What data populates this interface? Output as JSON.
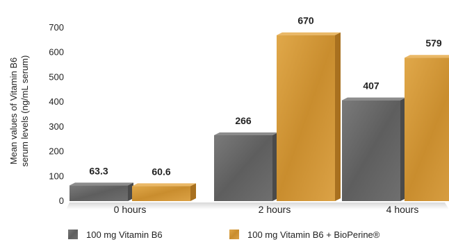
{
  "chart_data": {
    "type": "bar",
    "categories": [
      "0 hours",
      "2 hours",
      "4 hours"
    ],
    "series": [
      {
        "name": "100 mg Vitamin B6",
        "values": [
          63.3,
          266,
          407
        ],
        "labels": [
          "63.3",
          "266",
          "407"
        ],
        "color": "#6b6b6b"
      },
      {
        "name": "100 mg Vitamin B6 + BioPerine®",
        "values": [
          60.6,
          670,
          579
        ],
        "labels": [
          "60.6",
          "670",
          "579"
        ],
        "color": "#d49a3a"
      }
    ],
    "ylabel_line1": "Mean values of Vitamin B6",
    "ylabel_line2": "serum levels (ng/mL serum)",
    "yticks": [
      "0",
      "100",
      "200",
      "300",
      "400",
      "500",
      "600",
      "700"
    ],
    "ylim": [
      0,
      700
    ],
    "grid": false,
    "legend_position": "bottom"
  }
}
